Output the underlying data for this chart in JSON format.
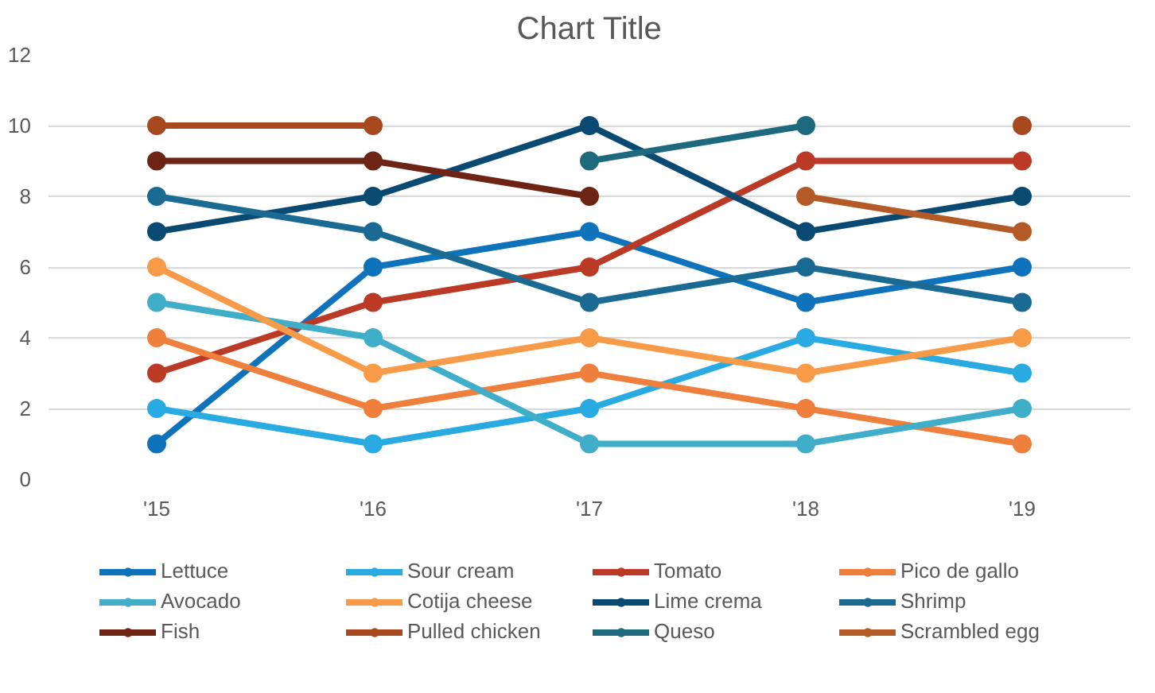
{
  "chart_data": {
    "type": "line",
    "title": "Chart Title",
    "categories": [
      "'15",
      "'16",
      "'17",
      "'18",
      "'19"
    ],
    "ylim": [
      0,
      12
    ],
    "yticks": [
      0,
      2,
      4,
      6,
      8,
      10,
      12
    ],
    "grid": "y",
    "legend": "bottom",
    "marker": "circle",
    "line_style": "solid",
    "series": [
      {
        "name": "Lettuce",
        "color": "#0f73bb",
        "values": [
          1,
          6,
          7,
          5,
          6
        ]
      },
      {
        "name": "Sour cream",
        "color": "#29abe2",
        "values": [
          2,
          1,
          2,
          4,
          3
        ]
      },
      {
        "name": "Tomato",
        "color": "#bb3a26",
        "values": [
          3,
          5,
          6,
          9,
          9
        ]
      },
      {
        "name": "Pico de gallo",
        "color": "#ee7f3c",
        "values": [
          4,
          2,
          3,
          2,
          1
        ]
      },
      {
        "name": "Avocado",
        "color": "#40aec8",
        "values": [
          5,
          4,
          1,
          1,
          2
        ]
      },
      {
        "name": "Cotija cheese",
        "color": "#f89b48",
        "values": [
          6,
          3,
          4,
          3,
          4
        ]
      },
      {
        "name": "Lime crema",
        "color": "#0a4a72",
        "values": [
          7,
          8,
          10,
          7,
          8
        ]
      },
      {
        "name": "Shrimp",
        "color": "#1b6a93",
        "values": [
          8,
          7,
          5,
          6,
          5
        ]
      },
      {
        "name": "Fish",
        "color": "#6e2414",
        "values": [
          9,
          9,
          8,
          null,
          null
        ]
      },
      {
        "name": "Pulled chicken",
        "color": "#a8481e",
        "values": [
          10,
          10,
          null,
          null,
          10
        ]
      },
      {
        "name": "Queso",
        "color": "#1d6a7e",
        "values": [
          null,
          null,
          9,
          10,
          null
        ]
      },
      {
        "name": "Scrambled egg",
        "color": "#b35a26",
        "values": [
          null,
          null,
          null,
          8,
          7
        ]
      }
    ]
  }
}
